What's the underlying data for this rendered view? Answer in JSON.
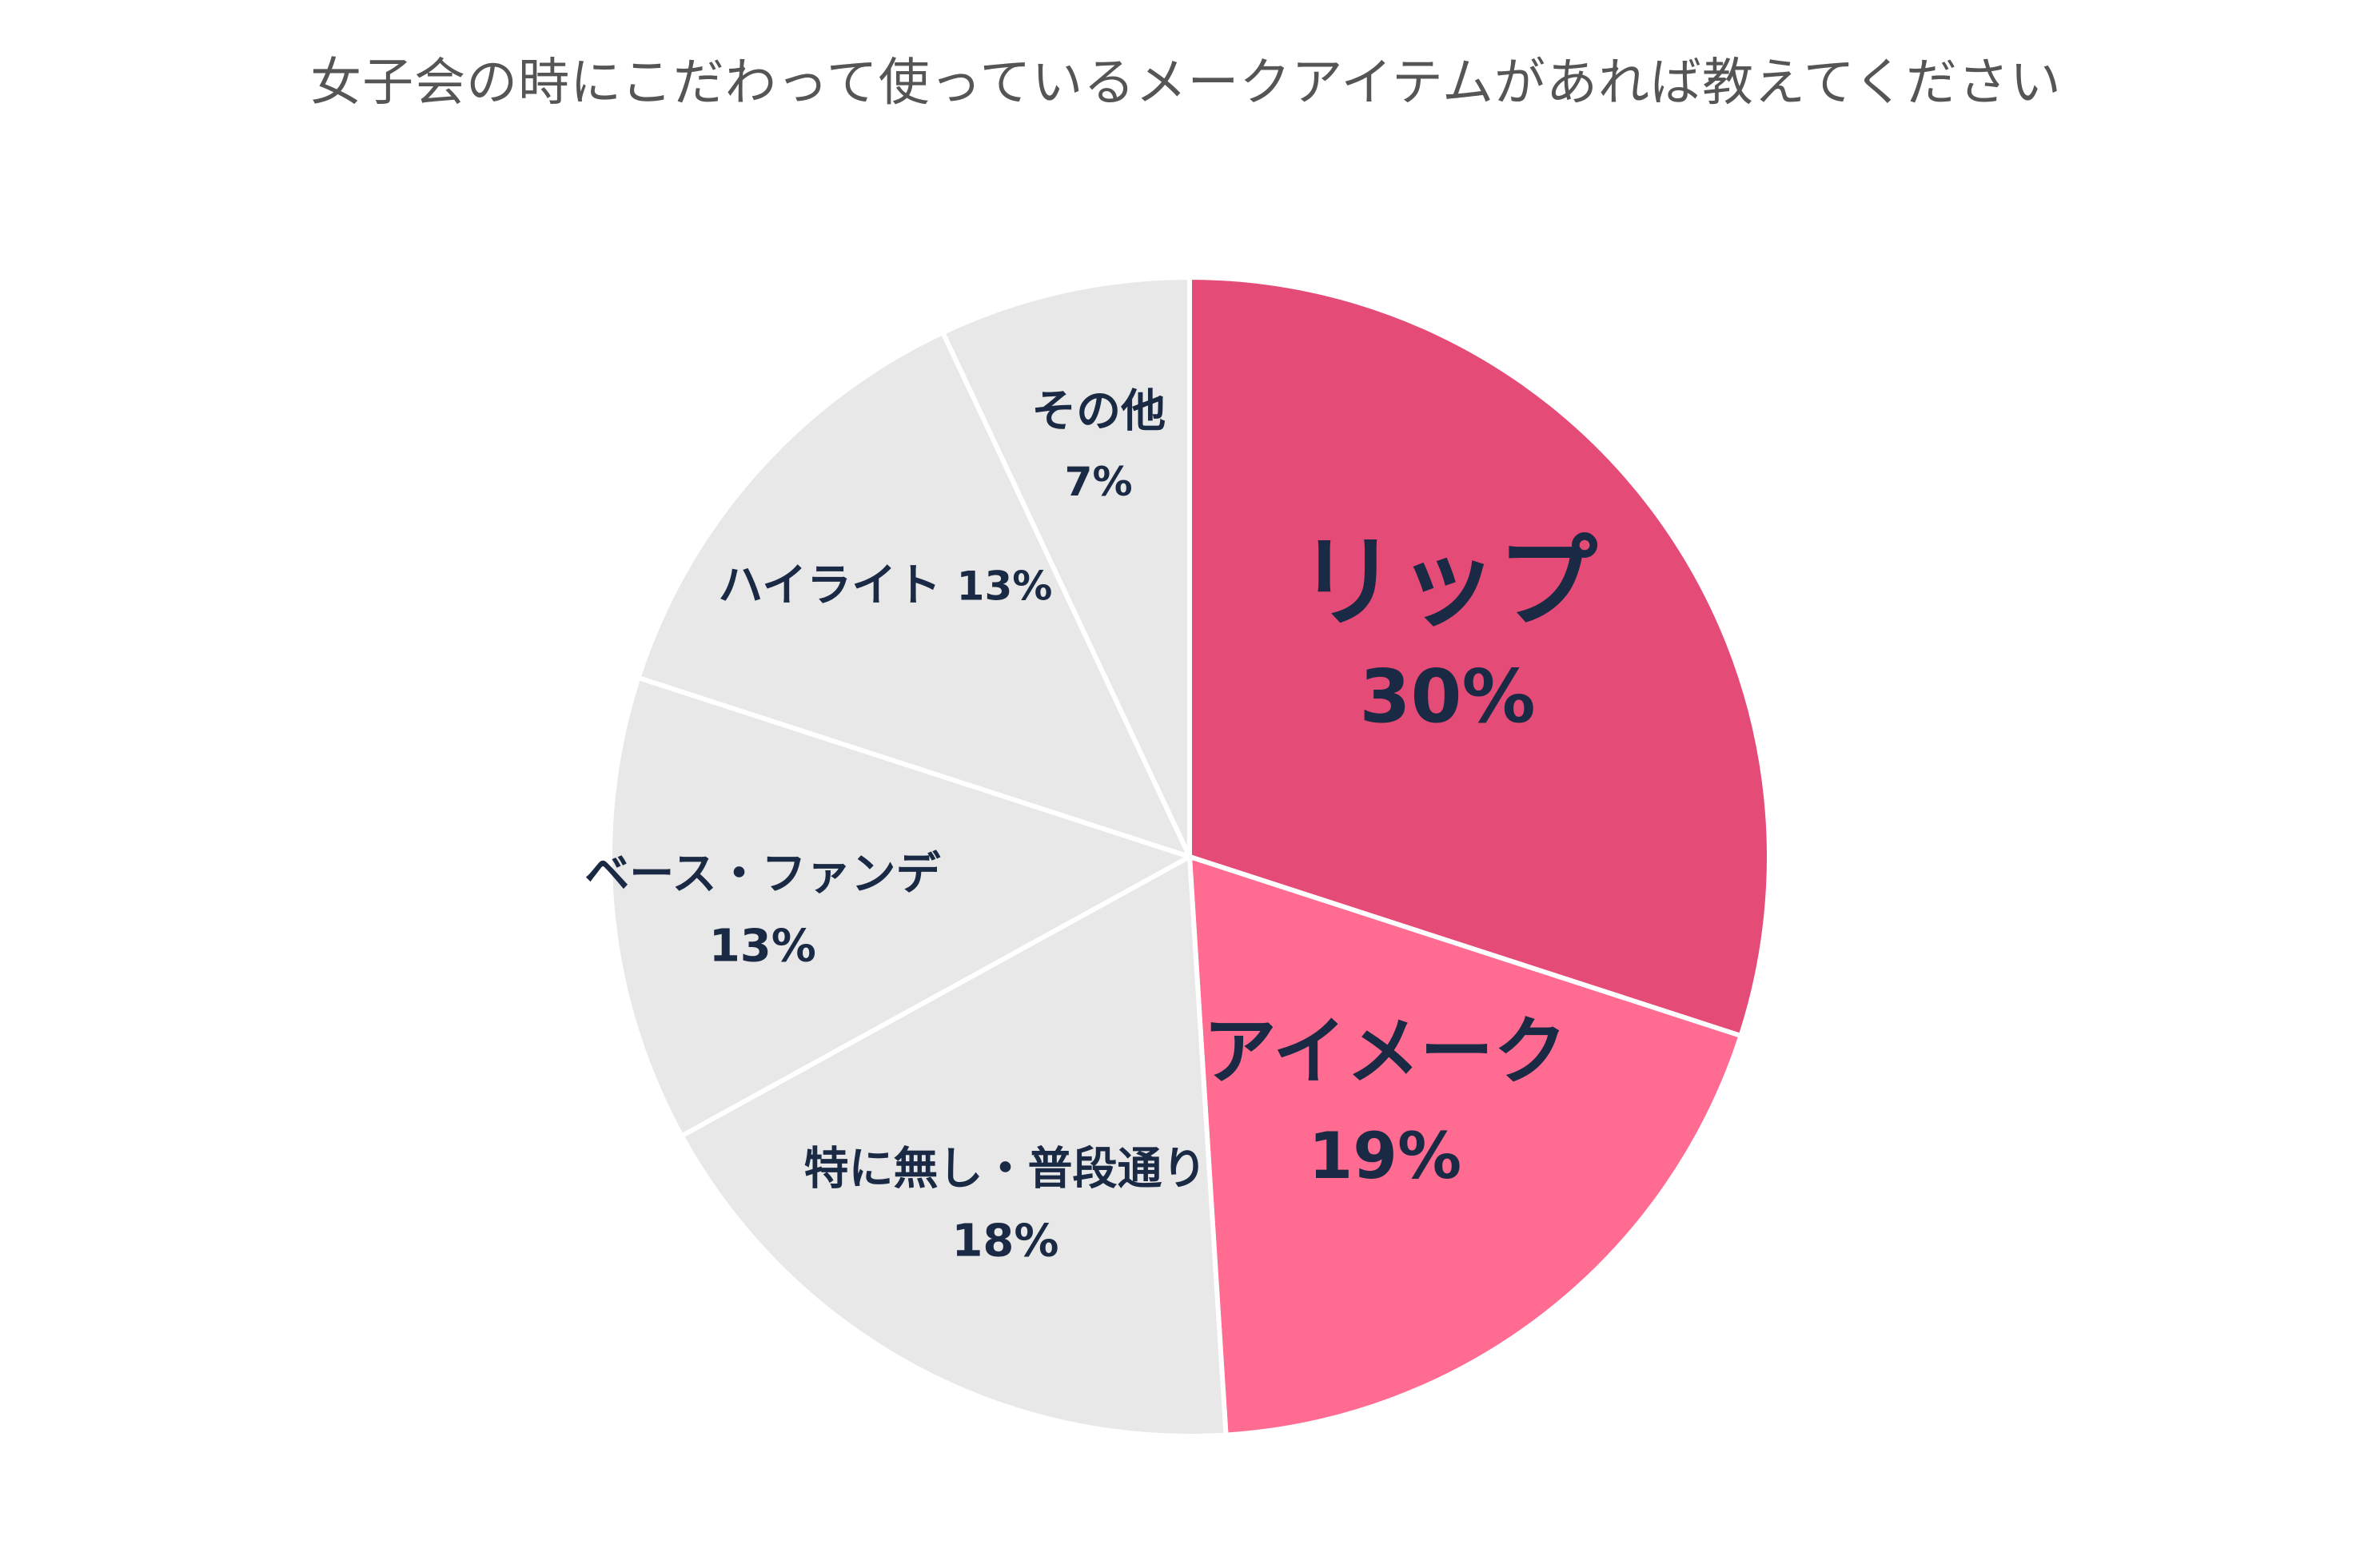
{
  "chart_data": {
    "type": "pie",
    "title": "女子会の時にこだわって使っているメークアイテムがあれば教えてください",
    "slices": [
      {
        "label": "リップ",
        "percent_label": "30%",
        "value": 30,
        "color": "#E54B77",
        "highlight": true
      },
      {
        "label": "アイメーク",
        "percent_label": "19%",
        "value": 19,
        "color": "#FF6B91",
        "highlight": true
      },
      {
        "label": "特に無し・普段通り",
        "percent_label": "18%",
        "value": 18,
        "color": "#E8E8E8",
        "highlight": false
      },
      {
        "label": "ベース・ファンデ",
        "percent_label": "13%",
        "value": 13,
        "color": "#E8E8E8",
        "highlight": false
      },
      {
        "label": "ハイライト",
        "percent_label": "13%",
        "value": 13,
        "color": "#E8E8E8",
        "highlight": false
      },
      {
        "label": "その他",
        "percent_label": "7%",
        "value": 7,
        "color": "#E8E8E8",
        "highlight": false
      }
    ],
    "start_direction": "12 o'clock",
    "direction": "clockwise",
    "legend": "none"
  }
}
